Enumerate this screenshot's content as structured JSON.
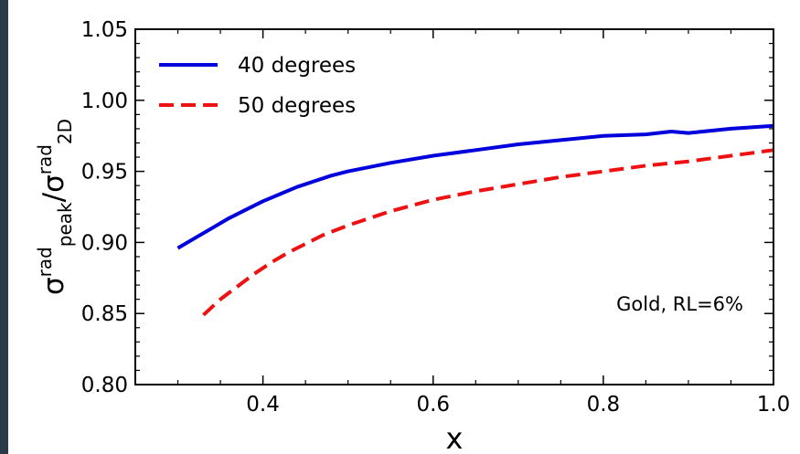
{
  "chart_data": {
    "type": "line",
    "xlabel": "x",
    "ylabel": {
      "base1": "σ",
      "sup1": "rad",
      "sub1": "peak",
      "sep": "/",
      "base2": "σ",
      "sup2": "rad",
      "sub2": "2D"
    },
    "xlim": [
      0.25,
      1.0
    ],
    "ylim": [
      0.8,
      1.05
    ],
    "xticks": [
      0.4,
      0.6,
      0.8,
      1.0
    ],
    "xtick_labels": [
      "0.4",
      "0.6",
      "0.8",
      "1.0"
    ],
    "yticks": [
      0.8,
      0.85,
      0.9,
      0.95,
      1.0,
      1.05
    ],
    "ytick_labels": [
      "0.80",
      "0.85",
      "0.90",
      "0.95",
      "1.00",
      "1.05"
    ],
    "legend_position": "top-left",
    "annotation": "Gold, RL=6%",
    "series": [
      {
        "name": "40 degrees",
        "color": "#0000dd",
        "style": "solid",
        "x": [
          0.3,
          0.32,
          0.34,
          0.36,
          0.38,
          0.4,
          0.42,
          0.44,
          0.46,
          0.48,
          0.5,
          0.55,
          0.6,
          0.65,
          0.7,
          0.75,
          0.8,
          0.85,
          0.88,
          0.9,
          0.95,
          1.0
        ],
        "y": [
          0.896,
          0.903,
          0.91,
          0.917,
          0.923,
          0.929,
          0.934,
          0.939,
          0.943,
          0.947,
          0.95,
          0.956,
          0.961,
          0.965,
          0.969,
          0.972,
          0.975,
          0.976,
          0.978,
          0.977,
          0.98,
          0.982
        ]
      },
      {
        "name": "50 degrees",
        "color": "#ee1111",
        "style": "dashed",
        "x": [
          0.33,
          0.35,
          0.37,
          0.39,
          0.41,
          0.43,
          0.45,
          0.47,
          0.5,
          0.55,
          0.6,
          0.65,
          0.7,
          0.75,
          0.8,
          0.85,
          0.9,
          0.95,
          1.0
        ],
        "y": [
          0.849,
          0.86,
          0.869,
          0.878,
          0.886,
          0.893,
          0.899,
          0.905,
          0.912,
          0.922,
          0.93,
          0.936,
          0.941,
          0.946,
          0.95,
          0.954,
          0.957,
          0.961,
          0.965
        ]
      }
    ]
  }
}
